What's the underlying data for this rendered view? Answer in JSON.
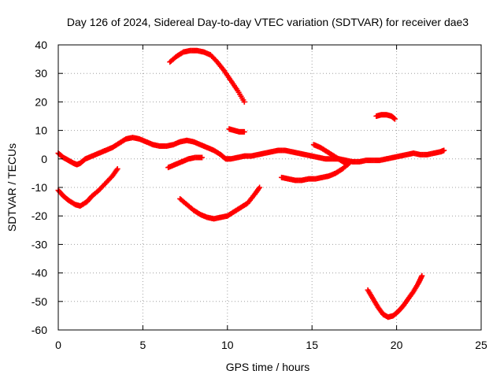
{
  "chart_data": {
    "type": "scatter",
    "title": "Day 126 of 2024, Sidereal Day-to-day VTEC variation (SDTVAR) for receiver dae3",
    "xlabel": "GPS time / hours",
    "ylabel": "SDTVAR / TECUs",
    "xlim": [
      0,
      25
    ],
    "ylim": [
      -60,
      40
    ],
    "xticks": [
      0,
      5,
      10,
      15,
      20,
      25
    ],
    "yticks": [
      -60,
      -50,
      -40,
      -30,
      -20,
      -10,
      0,
      10,
      20,
      30,
      40
    ],
    "grid": true,
    "marker": "plus",
    "color": "#ff0000",
    "series": [
      {
        "name": "track-1",
        "x": [
          0.0,
          0.3,
          0.6,
          0.9,
          1.1,
          1.3,
          1.6,
          2.0,
          2.4,
          2.8,
          3.2,
          3.6,
          4.0,
          4.4,
          4.8,
          5.2,
          5.6,
          6.0,
          6.4,
          6.8,
          7.2,
          7.6,
          8.0,
          8.4,
          8.8,
          9.2,
          9.6,
          9.9,
          10.2,
          10.6,
          11.0,
          11.4,
          11.8,
          12.2,
          12.6,
          13.0,
          13.4,
          13.8,
          14.2,
          14.6,
          15.0,
          15.4,
          15.8,
          16.2,
          16.6,
          17.0,
          17.4,
          17.8,
          18.2,
          18.6,
          19.0,
          19.4,
          19.8,
          20.2,
          20.6,
          21.0,
          21.4,
          21.8,
          22.2,
          22.6,
          22.8
        ],
        "y": [
          2,
          0.5,
          -0.5,
          -1.5,
          -2,
          -1.5,
          0,
          1,
          2,
          3,
          4,
          5.5,
          7,
          7.5,
          7,
          6,
          5,
          4.5,
          4.5,
          5,
          6,
          6.5,
          6,
          5,
          4,
          3,
          1.5,
          0,
          0,
          0.5,
          1,
          1,
          1.5,
          2,
          2.5,
          3,
          3,
          2.5,
          2,
          1.5,
          1,
          0.5,
          0,
          0,
          0,
          -0.5,
          -1,
          -1,
          -0.5,
          -0.5,
          -0.5,
          0,
          0.5,
          1,
          1.5,
          2,
          1.5,
          1.5,
          2,
          2.5,
          3
        ]
      },
      {
        "name": "track-2",
        "x": [
          0.0,
          0.3,
          0.6,
          1.0,
          1.3,
          1.7,
          2.0,
          2.4,
          2.8,
          3.2,
          3.5
        ],
        "y": [
          -11,
          -13,
          -14.5,
          -16,
          -16.5,
          -15,
          -13,
          -11,
          -8.5,
          -6,
          -3.5
        ]
      },
      {
        "name": "track-3",
        "x": [
          6.6,
          7.0,
          7.4,
          7.8,
          8.2,
          8.6
        ],
        "y": [
          34,
          36,
          37.5,
          38,
          38,
          37.5
        ]
      },
      {
        "name": "track-4",
        "x": [
          8.6,
          9.0,
          9.4,
          9.8,
          10.2,
          10.6,
          11.0
        ],
        "y": [
          37.5,
          36.5,
          34,
          31,
          27.5,
          24,
          20
        ]
      },
      {
        "name": "track-5",
        "x": [
          10.1,
          10.4,
          10.7,
          11.0
        ],
        "y": [
          10.5,
          10,
          9.5,
          9.5
        ]
      },
      {
        "name": "track-6",
        "x": [
          6.5,
          6.9,
          7.3,
          7.7,
          8.1,
          8.5
        ],
        "y": [
          -3,
          -2,
          -1,
          0,
          0.5,
          0.5
        ]
      },
      {
        "name": "track-7",
        "x": [
          7.2,
          7.6,
          8.0,
          8.4,
          8.8,
          9.2,
          9.6,
          10.0,
          10.4,
          10.8,
          11.2,
          11.6,
          11.9
        ],
        "y": [
          -14,
          -16,
          -18,
          -19.5,
          -20.5,
          -21,
          -20.5,
          -20,
          -18.5,
          -17,
          -15.5,
          -12.5,
          -10
        ]
      },
      {
        "name": "track-8",
        "x": [
          13.2,
          13.6,
          14.0,
          14.4,
          14.8,
          15.2,
          15.6,
          16.0,
          16.4,
          16.8,
          17.2
        ],
        "y": [
          -6.5,
          -7,
          -7.5,
          -7.5,
          -7,
          -7,
          -6.5,
          -6,
          -5,
          -3.5,
          -1.5
        ]
      },
      {
        "name": "track-9",
        "x": [
          15.1,
          15.5,
          15.9,
          16.3,
          16.7,
          17.1
        ],
        "y": [
          5,
          4,
          2.5,
          1,
          -0.5,
          -2
        ]
      },
      {
        "name": "track-10",
        "x": [
          18.8,
          19.1,
          19.4,
          19.7,
          19.9
        ],
        "y": [
          15,
          15.5,
          15.5,
          15,
          14
        ]
      },
      {
        "name": "track-11",
        "x": [
          18.3,
          18.6,
          18.9,
          19.2,
          19.5,
          19.8,
          20.1,
          20.4,
          20.7,
          21.0,
          21.3,
          21.5
        ],
        "y": [
          -46,
          -49,
          -52,
          -54.5,
          -55.5,
          -55,
          -53.5,
          -51.5,
          -49,
          -46.5,
          -43.5,
          -41
        ]
      }
    ]
  }
}
